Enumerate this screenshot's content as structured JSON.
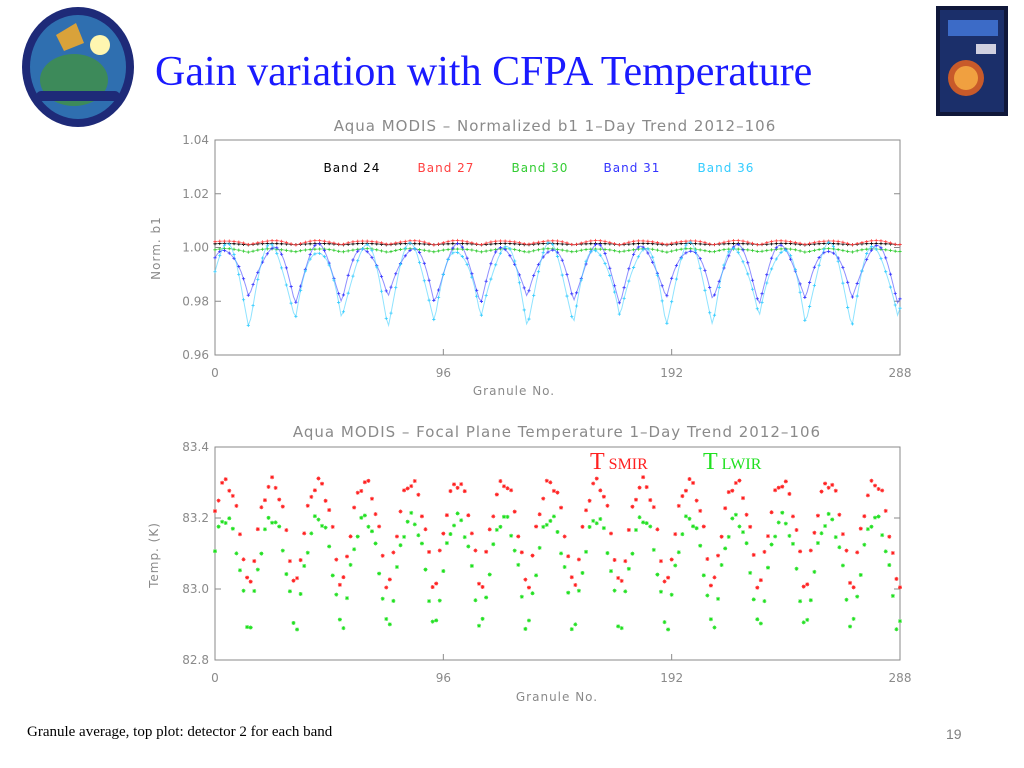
{
  "slide": {
    "title": "Gain variation with CFPA Temperature",
    "footer": "Granule average, top plot: detector 2 for each band",
    "page_number": "19"
  },
  "chart_data": [
    {
      "type": "line",
      "title": "Aqua MODIS – Normalized b1 1–Day Trend 2012–106",
      "xlabel": "Granule No.",
      "ylabel": "Norm. b1",
      "xlim": [
        0,
        288
      ],
      "ylim": [
        0.96,
        1.04
      ],
      "xticks": [
        "0",
        "96",
        "192",
        "288"
      ],
      "yticks": [
        "0.96",
        "0.98",
        "1.00",
        "1.02",
        "1.04"
      ],
      "legend_position": "top",
      "series": [
        {
          "name": "Band 24",
          "color": "#000000",
          "baseline": 1.0015,
          "amplitude": 0.0005,
          "period": 19.5,
          "phase": 4.5
        },
        {
          "name": "Band 27",
          "color": "#ff4040",
          "baseline": 1.0025,
          "amplitude": 0.0015,
          "period": 19.5,
          "phase": 4.5
        },
        {
          "name": "Band 30",
          "color": "#33cc33",
          "baseline": 0.9995,
          "amplitude": 0.0012,
          "period": 19.5,
          "phase": 4.5
        },
        {
          "name": "Band 31",
          "color": "#3333ff",
          "baseline": 1.0,
          "amplitude": 0.02,
          "period": 19.5,
          "phase": 4.5
        },
        {
          "name": "Band 36",
          "color": "#33ccff",
          "baseline": 1.0,
          "amplitude": 0.028,
          "period": 19.5,
          "phase": 4.5
        }
      ]
    },
    {
      "type": "scatter",
      "title": "Aqua MODIS – Focal Plane Temperature 1–Day Trend 2012–106",
      "xlabel": "Granule No.",
      "ylabel": "Temp. (K)",
      "xlim": [
        0,
        288
      ],
      "ylim": [
        82.8,
        83.4
      ],
      "xticks": [
        "0",
        "96",
        "192",
        "288"
      ],
      "yticks": [
        "82.8",
        "83.0",
        "83.2",
        "83.4"
      ],
      "legend_position": "top-right",
      "series": [
        {
          "name": "T SMIR",
          "label_main": "T",
          "label_sub": "SMIR",
          "color": "#ff2020",
          "high": 83.3,
          "low": 82.98,
          "period": 19.5,
          "phase": 4.5
        },
        {
          "name": "T LWIR",
          "label_main": "T",
          "label_sub": "LWIR",
          "color": "#20e020",
          "high": 83.2,
          "low": 82.86,
          "period": 19.5,
          "phase": 4.5
        }
      ]
    }
  ]
}
